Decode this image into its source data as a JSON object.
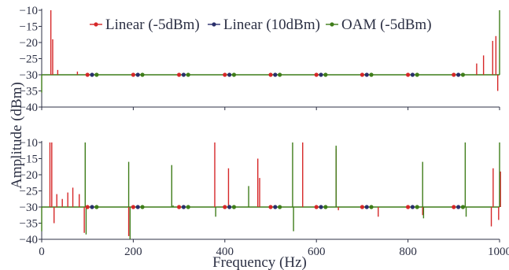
{
  "chart_data": {
    "type": "line",
    "xlabel": "Frequency (Hz)",
    "ylabel": "Amplitude (dBm)",
    "xlim": [
      0,
      1000
    ],
    "ylim": [
      -40,
      -10
    ],
    "xticks": [
      0,
      200,
      400,
      600,
      800,
      1000
    ],
    "yticks": [
      -10,
      -15,
      -20,
      -25,
      -30,
      -35,
      -40
    ],
    "grid": false,
    "legend_position": "top",
    "legend": [
      {
        "name": "Linear (-5dBm)",
        "color": "#d62728"
      },
      {
        "name": "Linear (10dBm)",
        "color": "#2a2f6b"
      },
      {
        "name": "OAM (-5dBm)",
        "color": "#3f7d1a"
      }
    ],
    "noise_floor": -30,
    "marker_every_hz": 100,
    "marker_offsets_hz": [
      0,
      10,
      20
    ],
    "panels": [
      {
        "series": [
          {
            "name": "Linear (-5dBm)",
            "color": "#d62728",
            "peaks": [
              [
                20,
                -10
              ],
              [
                24,
                -19
              ],
              [
                35,
                -28.5
              ],
              [
                78,
                -29
              ],
              [
                950,
                -26.5
              ],
              [
                965,
                -24
              ],
              [
                985,
                -19.5
              ],
              [
                992,
                -18
              ],
              [
                996,
                -35
              ]
            ]
          },
          {
            "name": "Linear (10dBm)",
            "color": "#2a2f6b",
            "peaks": []
          },
          {
            "name": "OAM (-5dBm)",
            "color": "#3f7d1a",
            "peaks": [
              [
                0,
                -35.5
              ],
              [
                1000,
                -10
              ]
            ]
          }
        ]
      },
      {
        "series": [
          {
            "name": "Linear (-5dBm)",
            "color": "#d62728",
            "peaks": [
              [
                18,
                -10
              ],
              [
                22,
                -10
              ],
              [
                27,
                -35
              ],
              [
                33,
                -26
              ],
              [
                45,
                -27.5
              ],
              [
                57,
                -25.5
              ],
              [
                68,
                -24
              ],
              [
                82,
                -26
              ],
              [
                93,
                -38
              ],
              [
                190,
                -39
              ],
              [
                378,
                -10
              ],
              [
                408,
                -18
              ],
              [
                472,
                -15
              ],
              [
                476,
                -21
              ],
              [
                570,
                -10
              ],
              [
                643,
                -12
              ],
              [
                648,
                -31
              ],
              [
                735,
                -33
              ],
              [
                832,
                -32.5
              ],
              [
                982,
                -36
              ],
              [
                986,
                -18
              ],
              [
                998,
                -34
              ],
              [
                1002,
                -19
              ]
            ]
          },
          {
            "name": "Linear (10dBm)",
            "color": "#2a2f6b",
            "peaks": []
          },
          {
            "name": "OAM (-5dBm)",
            "color": "#3f7d1a",
            "peaks": [
              [
                0,
                -37.5
              ],
              [
                95,
                -10
              ],
              [
                97,
                -38.5
              ],
              [
                190,
                -16
              ],
              [
                193,
                -40
              ],
              [
                284,
                -17
              ],
              [
                287,
                -29.5
              ],
              [
                380,
                -33
              ],
              [
                452,
                -23.5
              ],
              [
                548,
                -10
              ],
              [
                550,
                -37.5
              ],
              [
                643,
                -11
              ],
              [
                645,
                -30
              ],
              [
                832,
                -16
              ],
              [
                834,
                -33.5
              ],
              [
                925,
                -10
              ],
              [
                927,
                -33
              ],
              [
                1000,
                -10
              ]
            ]
          }
        ]
      }
    ]
  }
}
